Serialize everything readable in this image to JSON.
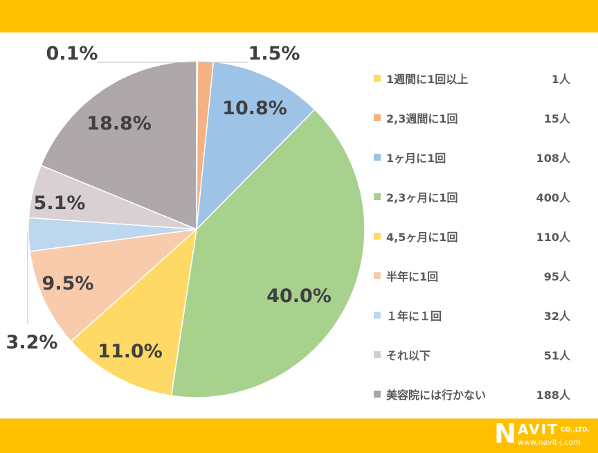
{
  "chart_data": {
    "type": "pie",
    "title": "",
    "start_angle_deg": 0,
    "direction": "clockwise",
    "categories": [
      "1週間に1回以上",
      "2,3週間に1回",
      "1ヶ月に1回",
      "2,3ヶ月に1回",
      "4,5ヶ月に1回",
      "半年に1回",
      "１年に１回",
      "それ以下",
      "美容院には行かない"
    ],
    "values": [
      1,
      15,
      108,
      400,
      110,
      95,
      32,
      51,
      188
    ],
    "percent_labels": [
      "0.1%",
      "1.5%",
      "10.8%",
      "40.0%",
      "11.0%",
      "9.5%",
      "3.2%",
      "5.1%",
      "18.8%"
    ],
    "colors": [
      "#ffd966",
      "#f4b183",
      "#9dc3e6",
      "#a9d18e",
      "#ffd966",
      "#f8cbad",
      "#bdd7ee",
      "#d9d0d3",
      "#afa8ab"
    ],
    "legend_position": "right",
    "unit": "人"
  },
  "legend": {
    "items": [
      {
        "label": "1週間に1回以上",
        "count": "1人",
        "color": "#ffd966"
      },
      {
        "label": "2,3週間に1回",
        "count": "15人",
        "color": "#f4b183"
      },
      {
        "label": "1ヶ月に1回",
        "count": "108人",
        "color": "#9dc3e6"
      },
      {
        "label": "2,3ヶ月に1回",
        "count": "400人",
        "color": "#a9d18e"
      },
      {
        "label": "4,5ヶ月に1回",
        "count": "110人",
        "color": "#ffd966"
      },
      {
        "label": "半年に1回",
        "count": "95人",
        "color": "#f8cbad"
      },
      {
        "label": "１年に１回",
        "count": "32人",
        "color": "#bdd7ee"
      },
      {
        "label": "それ以下",
        "count": "51人",
        "color": "#d0d0d0"
      },
      {
        "label": "美容院には行かない",
        "count": "188人",
        "color": "#a6a6a6"
      }
    ]
  },
  "brand": {
    "n": "N",
    "avit": "AVIT",
    "co": "CO.,LTD.",
    "url": "www.navit-j.com",
    "color": "#ffc000"
  }
}
